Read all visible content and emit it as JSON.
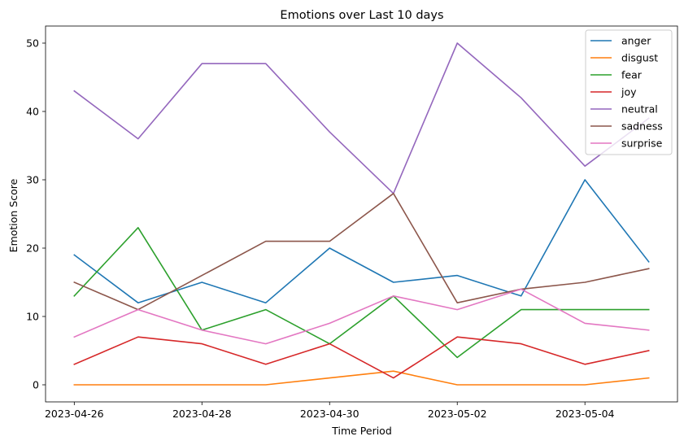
{
  "chart_data": {
    "type": "line",
    "title": "Emotions over Last 10 days",
    "xlabel": "Time Period",
    "ylabel": "Emotion Score",
    "x": [
      "2023-04-26",
      "2023-04-27",
      "2023-04-28",
      "2023-04-29",
      "2023-04-30",
      "2023-05-01",
      "2023-05-02",
      "2023-05-03",
      "2023-05-04",
      "2023-05-05"
    ],
    "x_ticks": [
      "2023-04-26",
      "2023-04-28",
      "2023-04-30",
      "2023-05-02",
      "2023-05-04"
    ],
    "y_ticks": [
      0,
      10,
      20,
      30,
      40,
      50
    ],
    "ylim": [
      -2.5,
      52.5
    ],
    "grid": false,
    "legend_position": "top-right",
    "series": [
      {
        "name": "anger",
        "color": "#1f77b4",
        "values": [
          19,
          12,
          15,
          12,
          20,
          15,
          16,
          13,
          30,
          18
        ]
      },
      {
        "name": "disgust",
        "color": "#ff7f0e",
        "values": [
          0,
          0,
          0,
          0,
          1,
          2,
          0,
          0,
          0,
          1
        ]
      },
      {
        "name": "fear",
        "color": "#2ca02c",
        "values": [
          13,
          23,
          8,
          11,
          6,
          13,
          4,
          11,
          11,
          11
        ]
      },
      {
        "name": "joy",
        "color": "#d62728",
        "values": [
          3,
          7,
          6,
          3,
          6,
          1,
          7,
          6,
          3,
          5
        ]
      },
      {
        "name": "neutral",
        "color": "#9467bd",
        "values": [
          43,
          36,
          47,
          47,
          37,
          28,
          50,
          42,
          32,
          39
        ]
      },
      {
        "name": "sadness",
        "color": "#8c564b",
        "values": [
          15,
          11,
          16,
          21,
          21,
          28,
          12,
          14,
          15,
          17
        ]
      },
      {
        "name": "surprise",
        "color": "#e377c2",
        "values": [
          7,
          11,
          8,
          6,
          9,
          13,
          11,
          14,
          9,
          8
        ]
      }
    ]
  }
}
